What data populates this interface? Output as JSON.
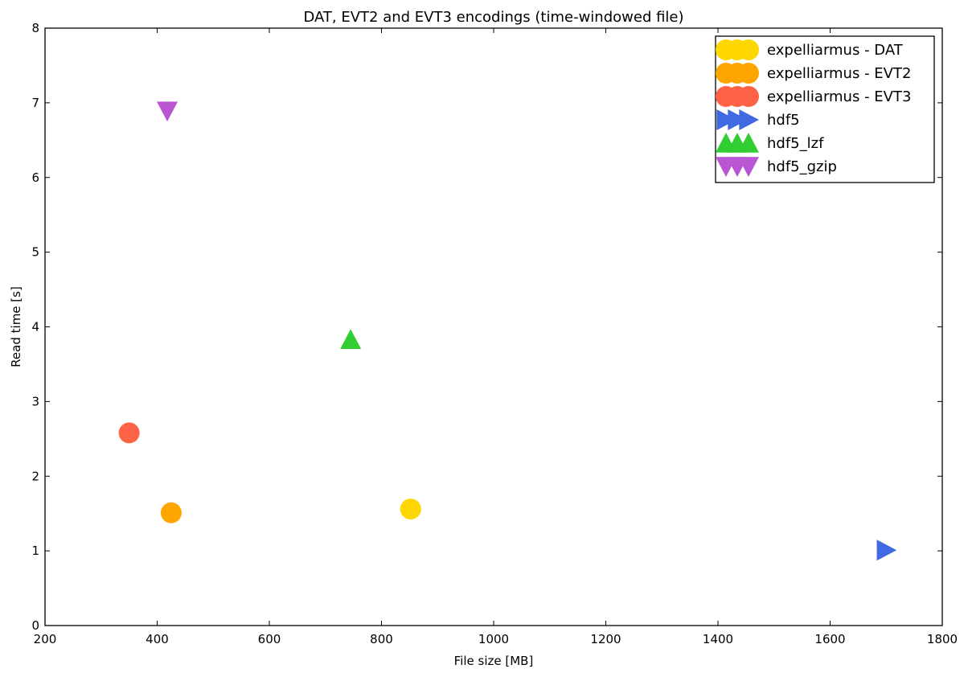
{
  "chart_data": {
    "type": "scatter",
    "title": "DAT, EVT2 and EVT3 encodings (time-windowed file)",
    "xlabel": "File size [MB]",
    "ylabel": "Read time [s]",
    "xlim": [
      200,
      1800
    ],
    "ylim": [
      0,
      8
    ],
    "x_ticks": [
      "200",
      "400",
      "600",
      "800",
      "1000",
      "1200",
      "1400",
      "1600",
      "1800"
    ],
    "y_ticks": [
      "0",
      "1",
      "2",
      "3",
      "4",
      "5",
      "6",
      "7",
      "8"
    ],
    "grid": false,
    "legend_position": "top-right",
    "series": [
      {
        "name": "expelliarmus - DAT",
        "marker": "circle",
        "color": "#FFD700",
        "x": 852,
        "y": 1.56
      },
      {
        "name": "expelliarmus - EVT2",
        "marker": "circle",
        "color": "#FFA500",
        "x": 425,
        "y": 1.51
      },
      {
        "name": "expelliarmus - EVT3",
        "marker": "circle",
        "color": "#FF6347",
        "x": 350,
        "y": 2.58
      },
      {
        "name": "hdf5",
        "marker": "triangle-right",
        "color": "#4169E1",
        "x": 1700,
        "y": 1.01
      },
      {
        "name": "hdf5_lzf",
        "marker": "triangle-up",
        "color": "#32CD32",
        "x": 745,
        "y": 3.83
      },
      {
        "name": "hdf5_gzip",
        "marker": "triangle-down",
        "color": "#BA55D3",
        "x": 418,
        "y": 6.89
      }
    ]
  }
}
